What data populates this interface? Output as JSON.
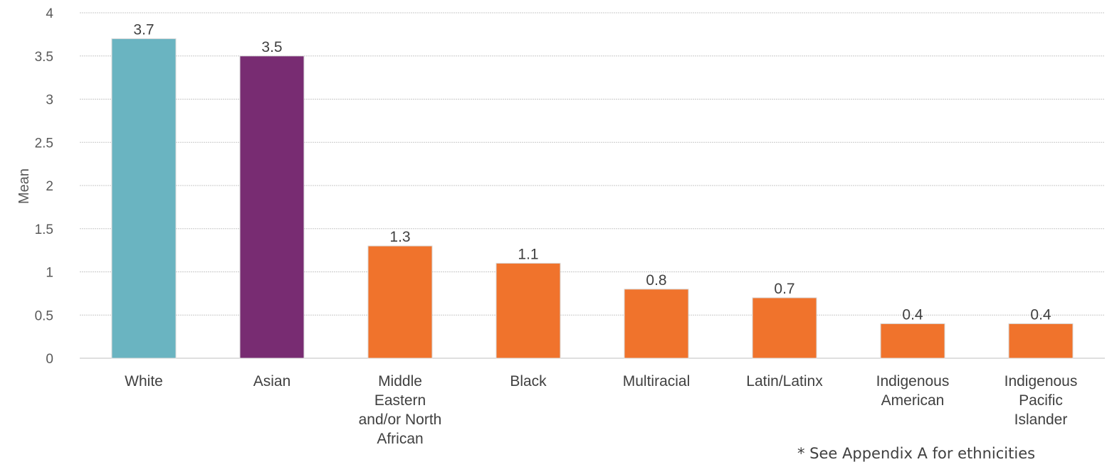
{
  "chart_data": {
    "type": "bar",
    "categories": [
      "White",
      "Asian",
      "Middle Eastern and/or North African",
      "Black",
      "Multiracial",
      "Latin/Latinx",
      "Indigenous American",
      "Indigenous Pacific Islander"
    ],
    "category_lines": [
      [
        "White"
      ],
      [
        "Asian"
      ],
      [
        "Middle",
        "Eastern",
        "and/or North",
        "African"
      ],
      [
        "Black"
      ],
      [
        "Multiracial"
      ],
      [
        "Latin/Latinx"
      ],
      [
        "Indigenous",
        "American"
      ],
      [
        "Indigenous",
        "Pacific",
        "Islander"
      ]
    ],
    "values": [
      3.7,
      3.5,
      1.3,
      1.1,
      0.8,
      0.7,
      0.4,
      0.4
    ],
    "value_labels": [
      "3.7",
      "3.5",
      "1.3",
      "1.1",
      "0.8",
      "0.7",
      "0.4",
      "0.4"
    ],
    "bar_colors": [
      "#6ab4c1",
      "#782c72",
      "#f0732c",
      "#f0732c",
      "#f0732c",
      "#f0732c",
      "#f0732c",
      "#f0732c"
    ],
    "ylabel": "Mean",
    "xlabel": "",
    "ylim": [
      0,
      4
    ],
    "yticks": [
      0,
      0.5,
      1,
      1.5,
      2,
      2.5,
      3,
      3.5,
      4
    ],
    "ytick_labels": [
      "0",
      "0.5",
      "1",
      "1.5",
      "2",
      "2.5",
      "3",
      "3.5",
      "4"
    ],
    "grid": true,
    "legend": "none"
  },
  "footnote": "* See Appendix A for ethnicities"
}
